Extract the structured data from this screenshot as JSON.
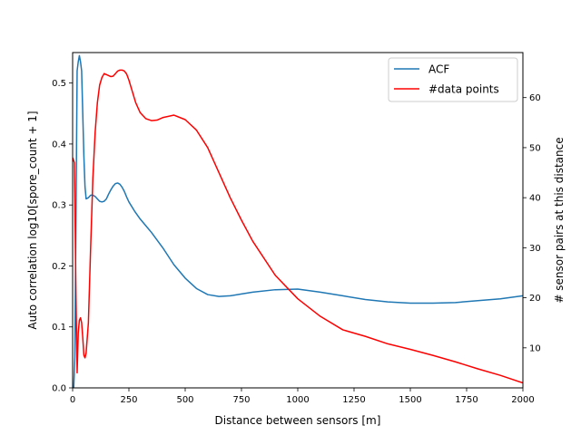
{
  "chart_data": {
    "type": "line",
    "title": "",
    "xlabel": "Distance between sensors [m]",
    "ylabel": "Auto correlation log10[spore_count + 1]",
    "y2label": "# sensor pairs at this distance",
    "xlim": [
      0,
      2000
    ],
    "ylim": [
      0,
      0.55
    ],
    "y2lim": [
      2,
      69
    ],
    "xticks": [
      0,
      250,
      500,
      750,
      1000,
      1250,
      1500,
      1750,
      2000
    ],
    "yticks": [
      0.0,
      0.1,
      0.2,
      0.3,
      0.4,
      0.5
    ],
    "y2ticks": [
      10,
      20,
      30,
      40,
      50,
      60
    ],
    "grid": false,
    "legend_position": "top-right",
    "series": [
      {
        "name": "ACF",
        "axis": "left",
        "color": "#1f77b4",
        "x": [
          5,
          10,
          15,
          20,
          25,
          30,
          35,
          40,
          45,
          50,
          55,
          60,
          65,
          70,
          80,
          90,
          100,
          110,
          120,
          130,
          140,
          150,
          160,
          170,
          180,
          190,
          200,
          210,
          220,
          230,
          240,
          250,
          275,
          300,
          350,
          400,
          450,
          500,
          550,
          600,
          650,
          700,
          750,
          800,
          900,
          1000,
          1100,
          1200,
          1300,
          1400,
          1500,
          1600,
          1700,
          1800,
          1900,
          2000
        ],
        "y": [
          0.0,
          0.05,
          0.28,
          0.52,
          0.535,
          0.545,
          0.535,
          0.52,
          0.45,
          0.38,
          0.33,
          0.31,
          0.311,
          0.312,
          0.316,
          0.316,
          0.314,
          0.31,
          0.306,
          0.305,
          0.306,
          0.31,
          0.318,
          0.325,
          0.331,
          0.335,
          0.336,
          0.334,
          0.329,
          0.322,
          0.313,
          0.305,
          0.29,
          0.277,
          0.255,
          0.23,
          0.202,
          0.18,
          0.163,
          0.153,
          0.15,
          0.151,
          0.154,
          0.157,
          0.161,
          0.162,
          0.157,
          0.151,
          0.145,
          0.141,
          0.139,
          0.139,
          0.14,
          0.143,
          0.146,
          0.151
        ]
      },
      {
        "name": "#data points",
        "axis": "right",
        "color": "#ff0000",
        "x": [
          0,
          8,
          15,
          20,
          25,
          30,
          35,
          40,
          45,
          50,
          55,
          60,
          70,
          80,
          90,
          100,
          110,
          120,
          130,
          140,
          150,
          160,
          170,
          180,
          190,
          200,
          210,
          220,
          230,
          240,
          250,
          260,
          270,
          280,
          300,
          325,
          350,
          375,
          400,
          450,
          500,
          550,
          600,
          650,
          700,
          750,
          800,
          900,
          1000,
          1100,
          1200,
          1300,
          1400,
          1500,
          1600,
          1700,
          1800,
          1900,
          2000
        ],
        "y": [
          48,
          47,
          20,
          5,
          13,
          15.5,
          16,
          15,
          12,
          8.5,
          8,
          9,
          15,
          30,
          44,
          53,
          59,
          62.5,
          64,
          64.8,
          64.6,
          64.4,
          64.2,
          64.3,
          64.8,
          65.3,
          65.5,
          65.5,
          65.3,
          64.7,
          63.5,
          62,
          60.5,
          59,
          57,
          55.8,
          55.4,
          55.5,
          56,
          56.5,
          55.6,
          53.5,
          50,
          45,
          40,
          35.5,
          31.3,
          24.5,
          19.8,
          16.3,
          13.6,
          12.3,
          10.8,
          9.7,
          8.5,
          7.2,
          5.8,
          4.5,
          3
        ]
      }
    ]
  }
}
